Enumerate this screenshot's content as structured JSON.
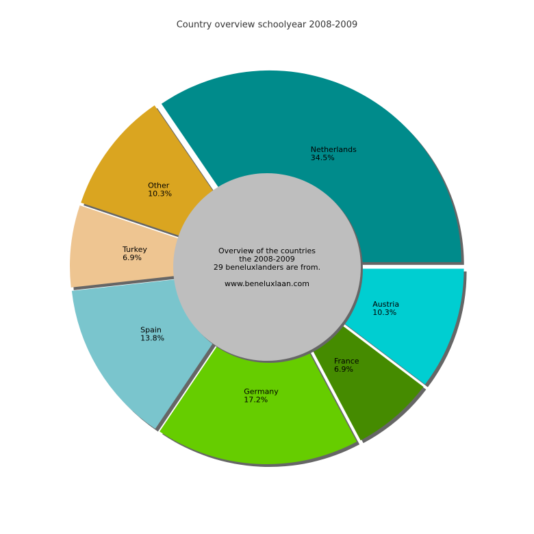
{
  "chart_data": {
    "type": "pie",
    "title": "Country overview schoolyear 2008-2009",
    "slices": [
      {
        "label": "Netherlands",
        "value": 34.5,
        "percent_label": "34.5%",
        "color": "#008b8b"
      },
      {
        "label": "Other",
        "value": 10.3,
        "percent_label": "10.3%",
        "color": "#daa520"
      },
      {
        "label": "Turkey",
        "value": 6.9,
        "percent_label": "6.9%",
        "color": "#eec591"
      },
      {
        "label": "Spain",
        "value": 13.8,
        "percent_label": "13.8%",
        "color": "#7ac5cd"
      },
      {
        "label": "Germany",
        "value": 17.2,
        "percent_label": "17.2%",
        "color": "#66cd00"
      },
      {
        "label": "France",
        "value": 6.9,
        "percent_label": "6.9%",
        "color": "#458b00"
      },
      {
        "label": "Austria",
        "value": 10.3,
        "percent_label": "10.3%",
        "color": "#00ced1"
      }
    ],
    "center_text": [
      "Overview of the countries",
      "the 2008-2009",
      "29 beneluxlanders are from.",
      "",
      "www.beneluxlaan.com"
    ],
    "center_color": "#bebebe",
    "shadow_color": "#666666"
  }
}
